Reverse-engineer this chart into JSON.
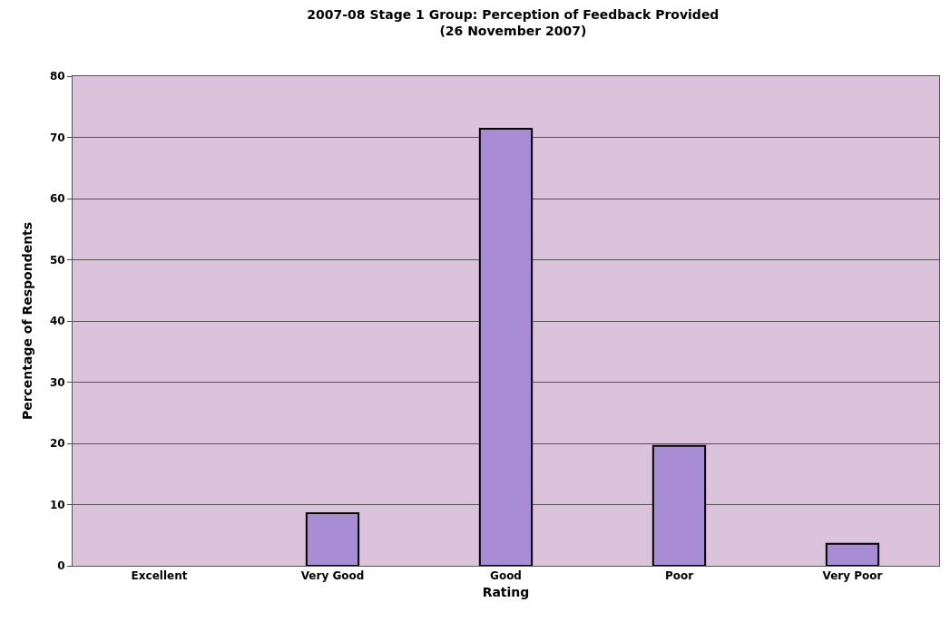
{
  "chart_data": {
    "type": "bar",
    "title": "2007-08 Stage 1 Group: Perception of Feedback Provided\n(26 November 2007)",
    "xlabel": "Rating",
    "ylabel": "Percentage of Respondents",
    "categories": [
      "Excellent",
      "Very Good",
      "Good",
      "Poor",
      "Very Poor"
    ],
    "values": [
      0,
      8.6,
      71.4,
      19.6,
      3.6
    ],
    "color": "#a88cd4",
    "ylim": [
      0,
      80
    ],
    "yticks": [
      0,
      10,
      20,
      30,
      40,
      50,
      60,
      70,
      80
    ],
    "grid": "y",
    "legend": false
  }
}
